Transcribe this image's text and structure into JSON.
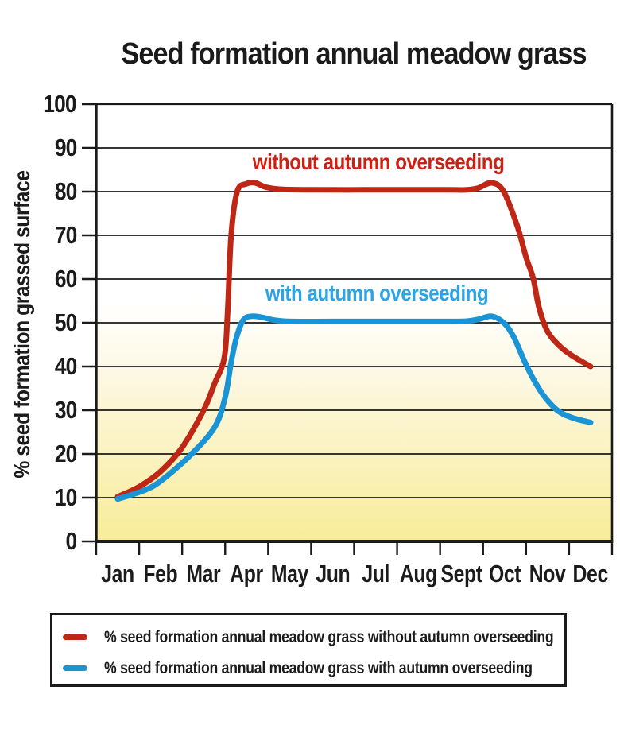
{
  "title": "Seed formation annual meadow grass",
  "y_axis_label": "% seed formation grassed surface",
  "annotations": {
    "red": "without autumn overseeding",
    "blue": "with autumn overseeding"
  },
  "legend": {
    "items": [
      {
        "label": "% seed formation annual meadow grass without autumn overseeding",
        "color": "#be2715"
      },
      {
        "label": "% seed formation annual meadow grass with autumn overseeding",
        "color": "#1b94d5"
      }
    ]
  },
  "colors": {
    "ink": "#1b1b1b",
    "grid": "#1a1a1a",
    "red_line": "#be2715",
    "red_text": "#cc2014",
    "blue_line": "#1b94d5",
    "blue_text": "#2ba3e6",
    "plot_bg_top": "#ffffff",
    "plot_bg_mid": "#fdf8e3",
    "plot_bg_bottom": "#f7ec99"
  },
  "chart_data": {
    "type": "line",
    "title": "Seed formation annual meadow grass",
    "xlabel": "",
    "ylabel": "% seed formation grassed surface",
    "x_categories": [
      "Jan",
      "Feb",
      "Mar",
      "Apr",
      "May",
      "Jun",
      "Jul",
      "Aug",
      "Sept",
      "Oct",
      "Nov",
      "Dec"
    ],
    "ylim": [
      0,
      100
    ],
    "y_ticks": [
      0,
      10,
      20,
      30,
      40,
      50,
      60,
      70,
      80,
      90,
      100
    ],
    "grid": "horizontal",
    "legend_position": "bottom",
    "series": [
      {
        "name": "% seed formation annual meadow grass without autumn overseeding",
        "color": "#be2715",
        "values_by_month": {
          "Jan": 10,
          "Feb": 16,
          "Mar": 30,
          "Apr": 81,
          "May": 80,
          "Jun": 80,
          "Jul": 80,
          "Aug": 80,
          "Sept": 80,
          "Oct": 81,
          "Nov": 48,
          "Dec": 40
        },
        "points": [
          [
            0.5,
            10.2
          ],
          [
            1.0,
            12.5
          ],
          [
            1.5,
            16
          ],
          [
            2.0,
            21.5
          ],
          [
            2.5,
            30
          ],
          [
            2.75,
            36
          ],
          [
            2.98,
            42
          ],
          [
            3.06,
            53
          ],
          [
            3.14,
            70
          ],
          [
            3.28,
            80
          ],
          [
            3.5,
            81.8
          ],
          [
            3.7,
            82
          ],
          [
            3.95,
            81
          ],
          [
            4.35,
            80.5
          ],
          [
            5.2,
            80.4
          ],
          [
            6.2,
            80.4
          ],
          [
            7.2,
            80.4
          ],
          [
            8.2,
            80.4
          ],
          [
            8.62,
            80.4
          ],
          [
            8.88,
            80.8
          ],
          [
            9.2,
            82
          ],
          [
            9.48,
            80
          ],
          [
            9.8,
            72
          ],
          [
            10.0,
            65
          ],
          [
            10.17,
            60
          ],
          [
            10.3,
            53.5
          ],
          [
            10.5,
            48
          ],
          [
            10.8,
            44.5
          ],
          [
            11.1,
            42.3
          ],
          [
            11.5,
            40
          ]
        ]
      },
      {
        "name": "% seed formation annual meadow grass with autumn overseeding",
        "color": "#1b94d5",
        "values_by_month": {
          "Jan": 10,
          "Feb": 14,
          "Mar": 23,
          "Apr": 50,
          "May": 50,
          "Jun": 50,
          "Jul": 50,
          "Aug": 50,
          "Sept": 50,
          "Oct": 50,
          "Nov": 33,
          "Dec": 27
        },
        "points": [
          [
            0.5,
            9.7
          ],
          [
            1.1,
            11.6
          ],
          [
            1.5,
            13.8
          ],
          [
            2.2,
            19.8
          ],
          [
            2.76,
            26.2
          ],
          [
            3.0,
            33
          ],
          [
            3.14,
            41
          ],
          [
            3.26,
            46.5
          ],
          [
            3.42,
            50.6
          ],
          [
            3.62,
            51.5
          ],
          [
            3.88,
            51.2
          ],
          [
            4.15,
            50.6
          ],
          [
            4.55,
            50.3
          ],
          [
            5.5,
            50.3
          ],
          [
            6.5,
            50.3
          ],
          [
            7.5,
            50.3
          ],
          [
            8.3,
            50.3
          ],
          [
            8.65,
            50.4
          ],
          [
            8.9,
            50.8
          ],
          [
            9.2,
            51.5
          ],
          [
            9.48,
            50
          ],
          [
            9.7,
            47
          ],
          [
            9.95,
            41.5
          ],
          [
            10.15,
            37.5
          ],
          [
            10.42,
            33.2
          ],
          [
            10.75,
            29.8
          ],
          [
            11.1,
            28.2
          ],
          [
            11.5,
            27.2
          ]
        ]
      }
    ]
  }
}
